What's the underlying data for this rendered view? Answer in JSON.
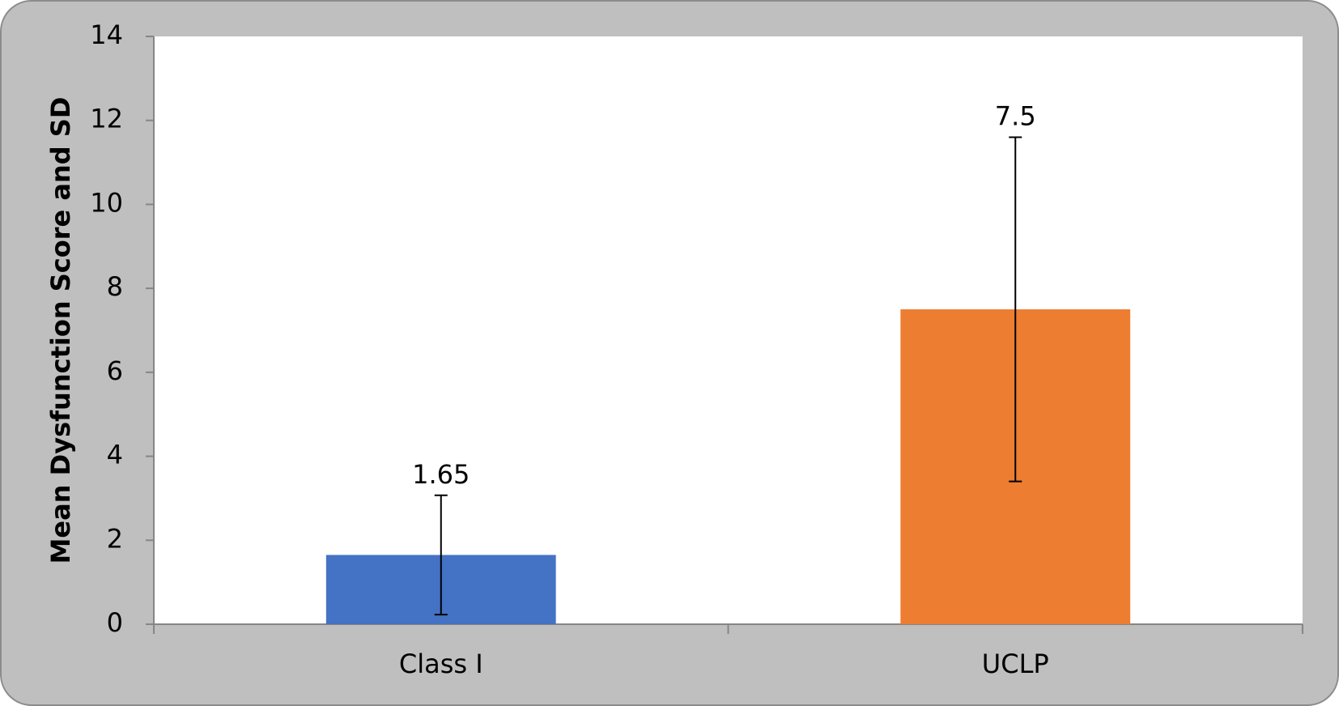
{
  "chart_data": {
    "type": "bar",
    "y_label": "Mean Dysfunction Score and SD",
    "categories": [
      "Class I",
      "UCLP"
    ],
    "values": [
      1.65,
      7.5
    ],
    "errors": [
      1.42,
      4.1
    ],
    "colors": [
      "#4472c4",
      "#ed7d31"
    ],
    "ylim": [
      0,
      14
    ],
    "yticks": [
      0,
      2,
      4,
      6,
      8,
      10,
      12,
      14
    ],
    "grid": false
  }
}
